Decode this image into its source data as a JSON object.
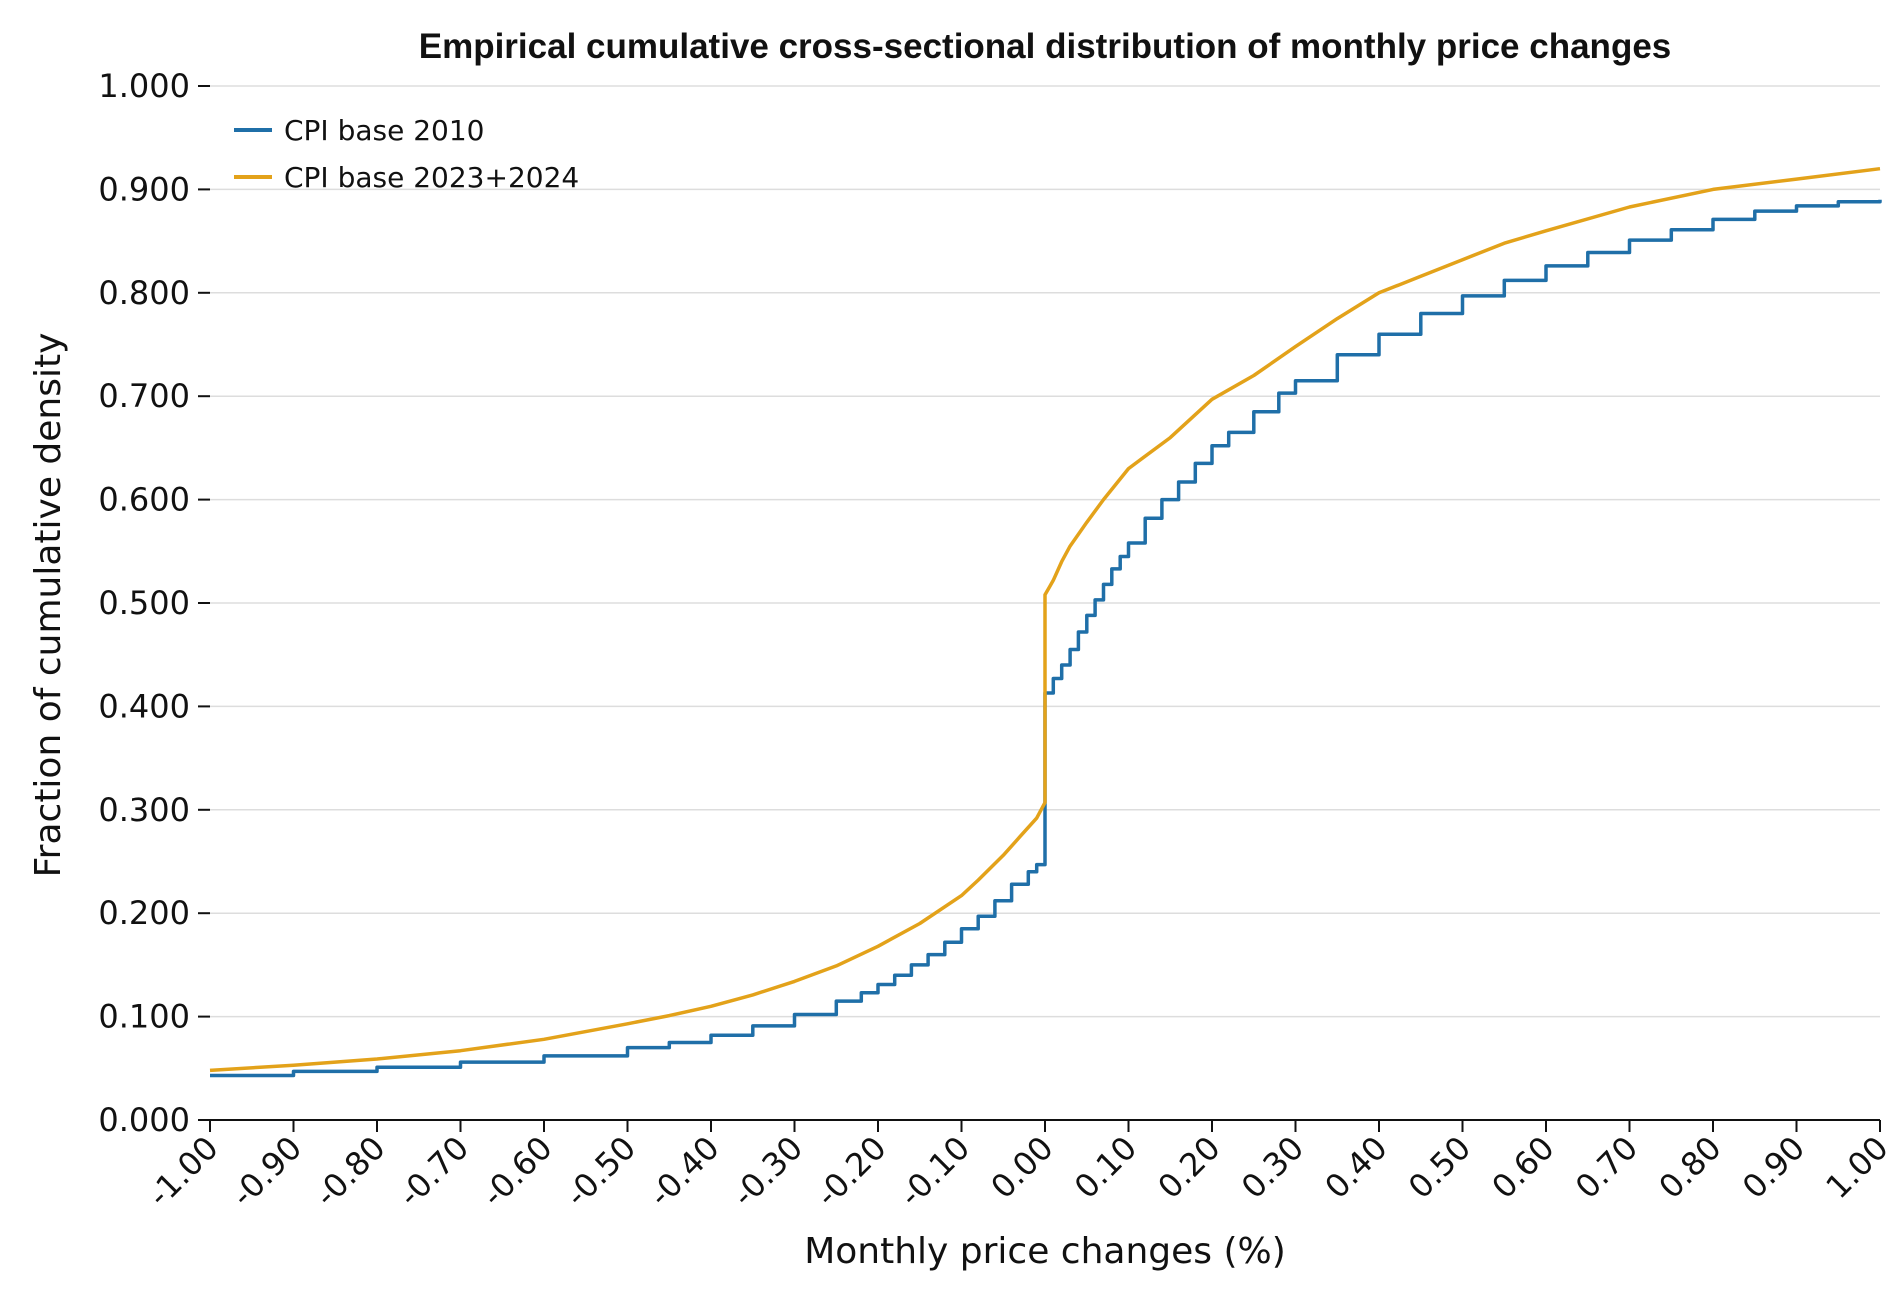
{
  "chart_data": {
    "type": "line",
    "title": "Empirical cumulative cross-sectional distribution of monthly price changes",
    "xlabel": "Monthly price changes (%)",
    "ylabel": "Fraction of cumulative density",
    "xlim": [
      -1.0,
      1.0
    ],
    "ylim": [
      0.0,
      1.0
    ],
    "x_ticks": [
      "-1.00",
      "-0.90",
      "-0.80",
      "-0.70",
      "-0.60",
      "-0.50",
      "-0.40",
      "-0.30",
      "-0.20",
      "-0.10",
      "0.00",
      "0.10",
      "0.20",
      "0.30",
      "0.40",
      "0.50",
      "0.60",
      "0.70",
      "0.80",
      "0.90",
      "1.00"
    ],
    "y_ticks": [
      "0.000",
      "0.100",
      "0.200",
      "0.300",
      "0.400",
      "0.500",
      "0.600",
      "0.700",
      "0.800",
      "0.900",
      "1.000"
    ],
    "grid": "horizontal",
    "legend_position": "top-left",
    "series": [
      {
        "name": "CPI base 2010",
        "color": "#1f6fa8",
        "style": "step",
        "x": [
          -1.0,
          -0.9,
          -0.8,
          -0.7,
          -0.6,
          -0.5,
          -0.45,
          -0.4,
          -0.35,
          -0.3,
          -0.25,
          -0.22,
          -0.2,
          -0.18,
          -0.16,
          -0.14,
          -0.12,
          -0.1,
          -0.08,
          -0.06,
          -0.04,
          -0.02,
          -0.01,
          0.0,
          0.0,
          0.0,
          0.01,
          0.02,
          0.03,
          0.04,
          0.05,
          0.06,
          0.07,
          0.08,
          0.09,
          0.1,
          0.12,
          0.14,
          0.16,
          0.18,
          0.2,
          0.22,
          0.25,
          0.28,
          0.3,
          0.35,
          0.4,
          0.45,
          0.5,
          0.55,
          0.6,
          0.65,
          0.7,
          0.75,
          0.8,
          0.85,
          0.9,
          0.95,
          1.0
        ],
        "y": [
          0.043,
          0.047,
          0.051,
          0.056,
          0.062,
          0.07,
          0.075,
          0.082,
          0.091,
          0.102,
          0.115,
          0.123,
          0.131,
          0.14,
          0.15,
          0.16,
          0.172,
          0.185,
          0.197,
          0.212,
          0.228,
          0.24,
          0.247,
          0.247,
          0.3,
          0.413,
          0.427,
          0.44,
          0.455,
          0.472,
          0.488,
          0.503,
          0.518,
          0.533,
          0.545,
          0.558,
          0.582,
          0.6,
          0.617,
          0.635,
          0.652,
          0.665,
          0.685,
          0.703,
          0.715,
          0.74,
          0.76,
          0.78,
          0.797,
          0.812,
          0.826,
          0.839,
          0.851,
          0.861,
          0.871,
          0.879,
          0.884,
          0.888,
          0.89
        ]
      },
      {
        "name": "CPI base 2023+2024",
        "color": "#e3a21a",
        "style": "line",
        "x": [
          -1.0,
          -0.9,
          -0.8,
          -0.7,
          -0.6,
          -0.5,
          -0.45,
          -0.4,
          -0.35,
          -0.3,
          -0.25,
          -0.2,
          -0.15,
          -0.1,
          -0.08,
          -0.05,
          -0.03,
          -0.01,
          0.0,
          0.0,
          0.005,
          0.01,
          0.02,
          0.03,
          0.05,
          0.07,
          0.1,
          0.15,
          0.2,
          0.25,
          0.3,
          0.35,
          0.4,
          0.45,
          0.5,
          0.55,
          0.6,
          0.7,
          0.8,
          0.9,
          1.0
        ],
        "y": [
          0.048,
          0.053,
          0.059,
          0.067,
          0.078,
          0.093,
          0.101,
          0.11,
          0.121,
          0.134,
          0.149,
          0.168,
          0.19,
          0.217,
          0.232,
          0.256,
          0.274,
          0.292,
          0.307,
          0.508,
          0.515,
          0.522,
          0.54,
          0.555,
          0.578,
          0.6,
          0.63,
          0.66,
          0.697,
          0.72,
          0.748,
          0.775,
          0.8,
          0.816,
          0.832,
          0.848,
          0.86,
          0.883,
          0.9,
          0.91,
          0.92
        ]
      }
    ]
  }
}
